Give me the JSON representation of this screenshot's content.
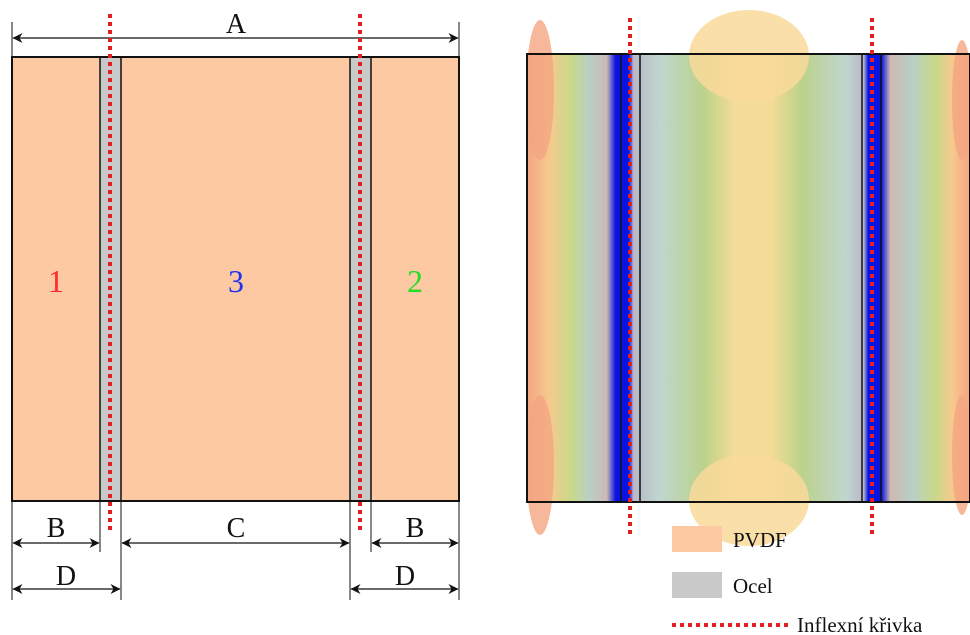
{
  "left_panel": {
    "dimension_labels": {
      "A": "A",
      "B_left": "B",
      "B_right": "B",
      "C": "C",
      "D_left": "D",
      "D_right": "D"
    },
    "region_labels": [
      {
        "text": "1",
        "color": "#ff2a2a"
      },
      {
        "text": "3",
        "color": "#2233ee"
      },
      {
        "text": "2",
        "color": "#22dd22"
      }
    ]
  },
  "legend": {
    "items": [
      {
        "label": "PVDF",
        "swatch": "#fdc9a3"
      },
      {
        "label": "Ocel",
        "swatch": "#c9c9c9"
      },
      {
        "label": "Inflexní křivka",
        "swatch": "#e31e24"
      }
    ]
  },
  "colors": {
    "pvdf": "#fdc9a3",
    "steel": "#c9c9c9",
    "inflection": "#e31e24",
    "outline": "#111111",
    "steel_band_right_panel": "#0a14e0"
  }
}
